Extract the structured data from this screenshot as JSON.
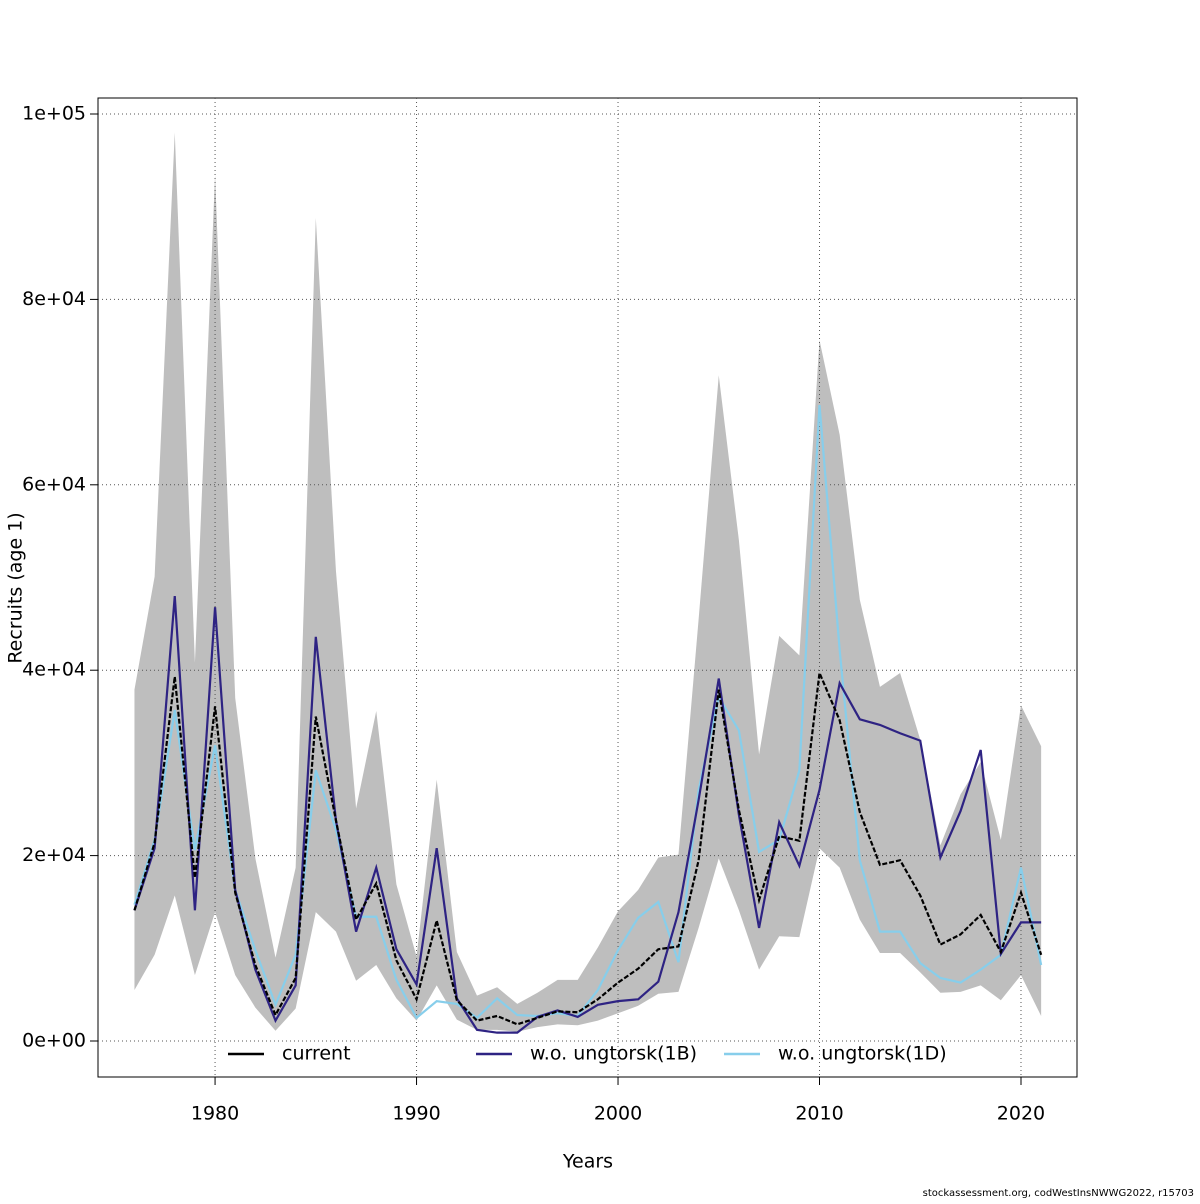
{
  "chart_data": {
    "type": "line",
    "x_label": "Years",
    "y_label": "Recruits (age 1)",
    "footnote": "stockassessment.org, codWestInsNWWG2022, r15703",
    "x": [
      1976,
      1977,
      1978,
      1979,
      1980,
      1981,
      1982,
      1983,
      1984,
      1985,
      1986,
      1987,
      1988,
      1989,
      1990,
      1991,
      1992,
      1993,
      1994,
      1995,
      1996,
      1997,
      1998,
      1999,
      2000,
      2001,
      2002,
      2003,
      2004,
      2005,
      2006,
      2007,
      2008,
      2009,
      2010,
      2011,
      2012,
      2013,
      2014,
      2015,
      2016,
      2017,
      2018,
      2019,
      2020,
      2021
    ],
    "band": {
      "color": "#bebebe",
      "upper": [
        37900,
        50100,
        98000,
        40800,
        93400,
        37000,
        19700,
        9000,
        18700,
        88800,
        50700,
        25100,
        35600,
        16900,
        9100,
        28200,
        9600,
        4900,
        5800,
        4000,
        5200,
        6600,
        6600,
        10100,
        14000,
        16300,
        19800,
        20100,
        45500,
        71800,
        54000,
        30900,
        43700,
        41600,
        75600,
        65400,
        47600,
        38200,
        39700,
        32500,
        21100,
        26600,
        30100,
        21700,
        36200,
        31800
      ],
      "lower": [
        5500,
        9300,
        15700,
        7100,
        13900,
        7100,
        3600,
        1100,
        3500,
        13900,
        11800,
        6500,
        8200,
        4600,
        2200,
        6000,
        2300,
        1200,
        1200,
        1000,
        1500,
        1800,
        1700,
        2200,
        3000,
        3800,
        5100,
        5300,
        12200,
        19700,
        14100,
        7700,
        11300,
        11200,
        20800,
        18700,
        13100,
        9500,
        9500,
        7400,
        5200,
        5300,
        6000,
        4400,
        7100,
        2700
      ]
    },
    "series": [
      {
        "name": "current",
        "color": "#000000",
        "values": [
          14100,
          21400,
          39300,
          17600,
          36100,
          16000,
          8200,
          2800,
          6800,
          35000,
          23800,
          13100,
          17000,
          8700,
          4500,
          13000,
          4400,
          2200,
          2700,
          1800,
          2500,
          3200,
          3100,
          4500,
          6300,
          7800,
          9900,
          10200,
          19500,
          37900,
          24900,
          15200,
          22100,
          21600,
          39700,
          34600,
          24700,
          19000,
          19500,
          15700,
          10400,
          11500,
          13600,
          9600,
          16000,
          9300
        ]
      },
      {
        "name": "w.o. ungtorsk(1B)",
        "color": "#2e2383",
        "values": [
          14100,
          20800,
          48000,
          14100,
          46800,
          16300,
          7700,
          2200,
          6000,
          43600,
          23800,
          11800,
          18700,
          9900,
          6100,
          20800,
          4600,
          1200,
          900,
          900,
          2600,
          3300,
          2600,
          3900,
          4300,
          4500,
          6400,
          13900,
          26000,
          39100,
          24400,
          12200,
          23600,
          18900,
          27100,
          38600,
          34700,
          34100,
          33200,
          32400,
          19800,
          24800,
          31400,
          9400,
          12800,
          12800
        ]
      },
      {
        "name": "w.o. ungtorsk(1D)",
        "color": "#87ceeb",
        "values": [
          14700,
          21700,
          35700,
          20600,
          31900,
          16300,
          9800,
          3900,
          9300,
          29200,
          22800,
          13400,
          13400,
          6600,
          2500,
          4300,
          4000,
          2500,
          4600,
          2800,
          2700,
          3000,
          2700,
          5500,
          9800,
          13300,
          15000,
          8500,
          27100,
          37100,
          33500,
          20400,
          21700,
          29200,
          68600,
          42200,
          19500,
          11800,
          11800,
          8400,
          6800,
          6300,
          7700,
          9300,
          18700,
          8200
        ]
      }
    ],
    "xlim": [
      1974.19,
      2022.78
    ],
    "ylim": [
      -3883,
      101726
    ],
    "xticks": [
      1980,
      1990,
      2000,
      2010,
      2020
    ],
    "yticks": [
      {
        "value": 0,
        "label": "0e+00"
      },
      {
        "value": 20000,
        "label": "2e+04"
      },
      {
        "value": 40000,
        "label": "4e+04"
      },
      {
        "value": 60000,
        "label": "6e+04"
      },
      {
        "value": 80000,
        "label": "8e+04"
      },
      {
        "value": 100000,
        "label": "1e+05"
      }
    ],
    "grid": true,
    "legend": "bottom"
  }
}
